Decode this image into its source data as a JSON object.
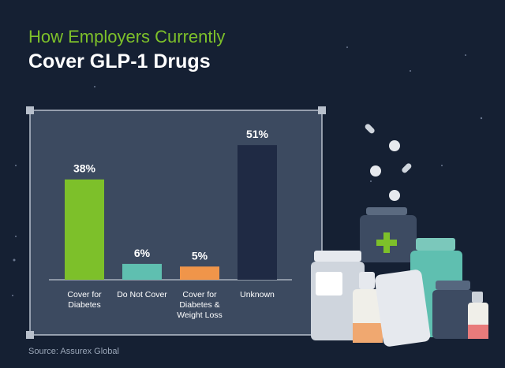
{
  "chart_data": {
    "type": "bar",
    "title": "How Employers Currently",
    "subtitle": "Cover GLP-1 Drugs",
    "categories": [
      "Cover for Diabetes",
      "Do Not Cover",
      "Cover for Diabetes & Weight Loss",
      "Unknown"
    ],
    "values": [
      38,
      6,
      5,
      51
    ],
    "value_labels": [
      "38%",
      "6%",
      "5%",
      "51%"
    ],
    "colors": [
      "#7dc02a",
      "#5fbfb0",
      "#f0954a",
      "#1f2a44"
    ],
    "source": "Source: Assurex Global"
  }
}
